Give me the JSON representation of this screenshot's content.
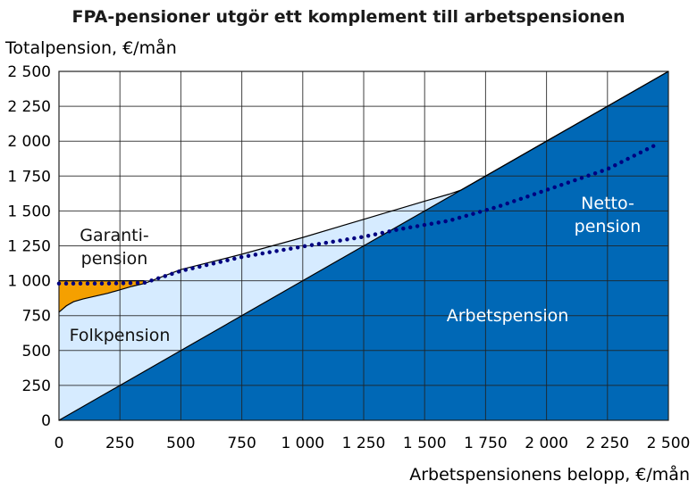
{
  "chart_data": {
    "type": "area",
    "title": "FPA-pensioner utgör ett komplement till arbetspensionen",
    "ylabel": "Totalpension, €/mån",
    "xlabel": "Arbetspensionens belopp, €/mån",
    "xlim": [
      0,
      2500
    ],
    "ylim": [
      0,
      2500
    ],
    "grid": true,
    "x_tick_labels": [
      "0",
      "250",
      "500",
      "750",
      "1 000",
      "1 250",
      "1 500",
      "1 750",
      "2 000",
      "2 250",
      "2 500"
    ],
    "y_tick_labels": [
      "0",
      "250",
      "500",
      "750",
      "1 000",
      "1 250",
      "1 500",
      "1 750",
      "2 000",
      "2 250",
      "2 500"
    ],
    "series": [
      {
        "name": "Arbetspension",
        "label_lines": [
          "Arbetspension"
        ],
        "color": "#0068b6",
        "x": [
          0,
          2500
        ],
        "y": [
          0,
          2500
        ]
      },
      {
        "name": "Folkpension",
        "label_lines": [
          "Folkpension"
        ],
        "color": "#d6ebff",
        "x": [
          0,
          30,
          60,
          100,
          150,
          200,
          250,
          300,
          350,
          500,
          750,
          1000,
          1250,
          1500,
          1600,
          1650,
          2000,
          2500
        ],
        "y": [
          775,
          820,
          850,
          870,
          890,
          910,
          935,
          960,
          980,
          1080,
          1190,
          1310,
          1440,
          1570,
          1620,
          1650,
          2000,
          2500
        ]
      },
      {
        "name": "Garantipension",
        "label_lines": [
          "Garanti-",
          "pension"
        ],
        "color": "#f5a000",
        "x": [
          0,
          50,
          100,
          150,
          200,
          250,
          300,
          350
        ],
        "y": [
          1000,
          1000,
          1000,
          1000,
          1000,
          1000,
          1000,
          1000
        ]
      },
      {
        "name": "Nettopension",
        "label_lines": [
          "Netto-",
          "pension"
        ],
        "color": "#000080",
        "x": [
          0,
          200,
          350,
          500,
          750,
          1000,
          1250,
          1400,
          1600,
          1800,
          2000,
          2250,
          2450
        ],
        "y": [
          980,
          980,
          985,
          1070,
          1170,
          1245,
          1315,
          1370,
          1430,
          1530,
          1650,
          1800,
          1975
        ]
      }
    ]
  }
}
